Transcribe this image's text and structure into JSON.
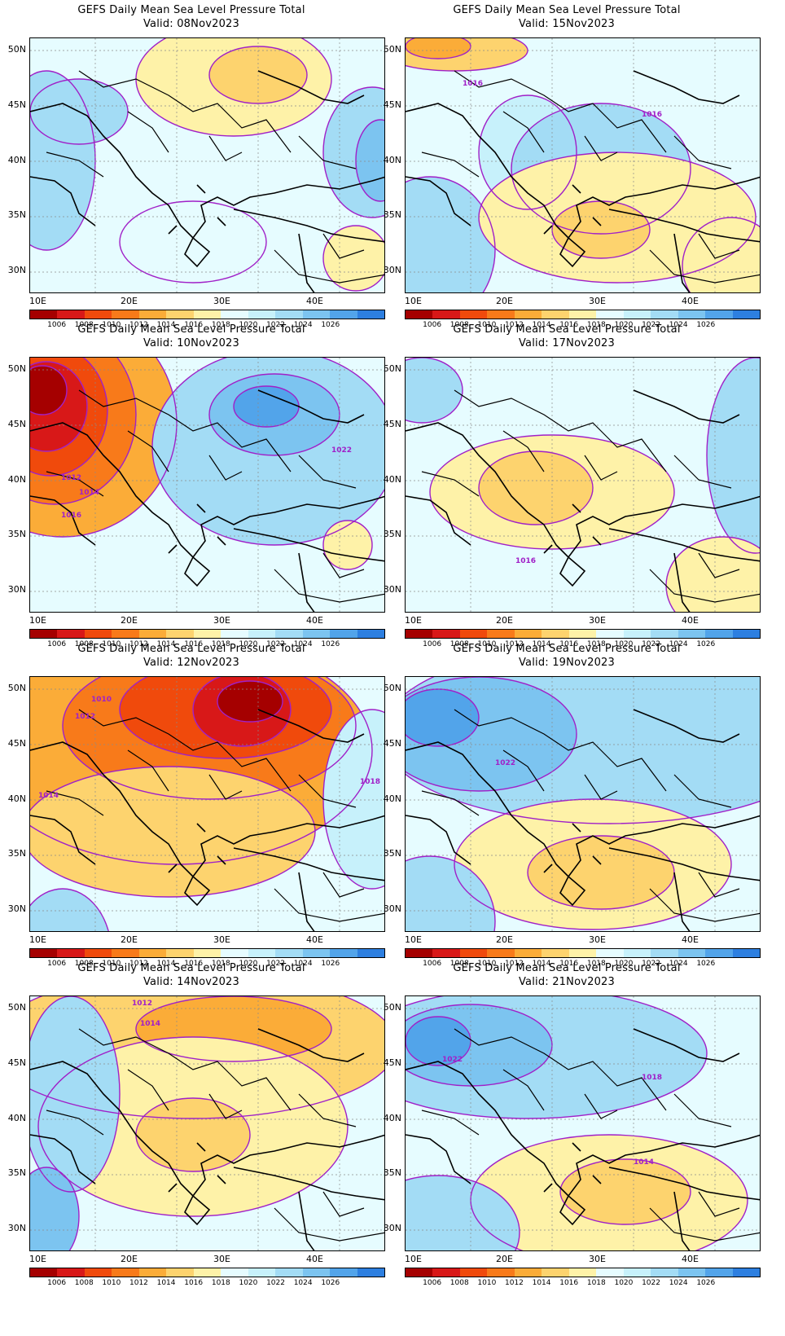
{
  "title_main": "GEFS Daily Mean Sea Level Pressure Total",
  "valid_prefix": "Valid:",
  "colorbar_colors": [
    "#a50000",
    "#d81818",
    "#f04a0c",
    "#f87a1a",
    "#fbac38",
    "#fdd36e",
    "#fef2a8",
    "#e6fcff",
    "#c7f1fb",
    "#a3dcf5",
    "#7cc4f0",
    "#52a4ea",
    "#2d7fe0"
  ],
  "colorbar_labels": [
    "1006",
    "1008",
    "1010",
    "1012",
    "1014",
    "1016",
    "1018",
    "1020",
    "1022",
    "1024",
    "1026"
  ],
  "lat_labels": [
    "50N",
    "45N",
    "40N",
    "35N",
    "30N"
  ],
  "lon_labels": [
    "10E",
    "20E",
    "30E",
    "40E"
  ],
  "panels": [
    {
      "valid": "08Nov2023",
      "contour_labels": []
    },
    {
      "valid": "15Nov2023",
      "contour_labels": [
        "1016",
        "1016"
      ]
    },
    {
      "valid": "10Nov2023",
      "contour_labels": [
        "1022",
        "1012",
        "1014",
        "1016"
      ]
    },
    {
      "valid": "17Nov2023",
      "contour_labels": [
        "1016"
      ]
    },
    {
      "valid": "12Nov2023",
      "contour_labels": [
        "1010",
        "1012",
        "1014",
        "1018"
      ]
    },
    {
      "valid": "19Nov2023",
      "contour_labels": [
        "1022"
      ]
    },
    {
      "valid": "14Nov2023",
      "contour_labels": [
        "1012",
        "1014"
      ]
    },
    {
      "valid": "21Nov2023",
      "contour_labels": [
        "1022",
        "1018",
        "1014"
      ]
    }
  ]
}
